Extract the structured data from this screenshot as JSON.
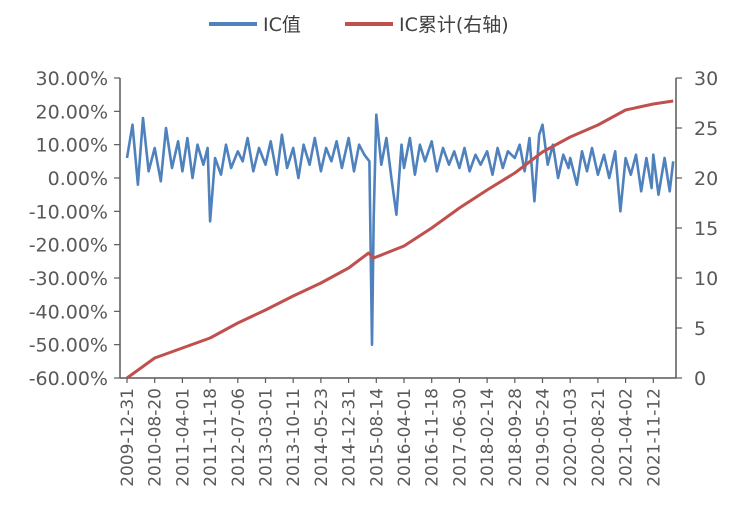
{
  "chart_data": {
    "type": "line",
    "legend": {
      "position": "top",
      "entries": [
        {
          "label": "IC值",
          "color": "#4f81bd"
        },
        {
          "label": "IC累计(右轴)",
          "color": "#c0504d"
        }
      ]
    },
    "left_axis": {
      "ticks": [
        "30.00%",
        "20.00%",
        "10.00%",
        "0.00%",
        "-10.00%",
        "-20.00%",
        "-30.00%",
        "-40.00%",
        "-50.00%",
        "-60.00%"
      ],
      "range": [
        -0.6,
        0.3
      ]
    },
    "right_axis": {
      "ticks": [
        "30",
        "25",
        "20",
        "15",
        "10",
        "5",
        "0"
      ],
      "range": [
        0,
        30
      ]
    },
    "x_ticks": [
      "2009-12-31",
      "2010-08-20",
      "2011-04-01",
      "2011-11-18",
      "2012-07-06",
      "2013-03-01",
      "2013-10-11",
      "2014-05-23",
      "2014-12-31",
      "2015-08-14",
      "2016-04-01",
      "2016-11-18",
      "2017-06-30",
      "2018-02-14",
      "2018-09-28",
      "2019-05-24",
      "2020-01-03",
      "2020-08-21",
      "2021-04-02",
      "2021-11-12"
    ],
    "grid": false,
    "series": [
      {
        "name": "IC值",
        "axis": "left",
        "color": "#4f81bd",
        "points_date_value": [
          [
            "2009-12-31",
            0.06
          ],
          [
            "2010-02-15",
            0.16
          ],
          [
            "2010-04-01",
            -0.02
          ],
          [
            "2010-05-14",
            0.18
          ],
          [
            "2010-06-30",
            0.02
          ],
          [
            "2010-08-20",
            0.09
          ],
          [
            "2010-10-08",
            -0.01
          ],
          [
            "2010-11-19",
            0.15
          ],
          [
            "2011-01-07",
            0.03
          ],
          [
            "2011-02-25",
            0.11
          ],
          [
            "2011-04-01",
            0.02
          ],
          [
            "2011-05-13",
            0.12
          ],
          [
            "2011-06-24",
            0.0
          ],
          [
            "2011-08-05",
            0.1
          ],
          [
            "2011-09-23",
            0.04
          ],
          [
            "2011-10-28",
            0.09
          ],
          [
            "2011-11-18",
            -0.13
          ],
          [
            "2011-12-30",
            0.06
          ],
          [
            "2012-02-17",
            0.01
          ],
          [
            "2012-03-30",
            0.1
          ],
          [
            "2012-05-11",
            0.03
          ],
          [
            "2012-07-06",
            0.08
          ],
          [
            "2012-08-17",
            0.05
          ],
          [
            "2012-09-28",
            0.12
          ],
          [
            "2012-11-16",
            0.02
          ],
          [
            "2013-01-04",
            0.09
          ],
          [
            "2013-03-01",
            0.04
          ],
          [
            "2013-04-12",
            0.11
          ],
          [
            "2013-05-31",
            0.01
          ],
          [
            "2013-07-12",
            0.13
          ],
          [
            "2013-08-23",
            0.03
          ],
          [
            "2013-10-11",
            0.09
          ],
          [
            "2013-11-22",
            0.0
          ],
          [
            "2014-01-03",
            0.1
          ],
          [
            "2014-02-21",
            0.04
          ],
          [
            "2014-04-04",
            0.12
          ],
          [
            "2014-05-23",
            0.02
          ],
          [
            "2014-07-04",
            0.09
          ],
          [
            "2014-08-15",
            0.05
          ],
          [
            "2014-09-26",
            0.11
          ],
          [
            "2014-11-07",
            0.03
          ],
          [
            "2014-12-31",
            0.12
          ],
          [
            "2015-02-13",
            0.02
          ],
          [
            "2015-03-27",
            0.1
          ],
          [
            "2015-05-08",
            0.07
          ],
          [
            "2015-06-19",
            0.05
          ],
          [
            "2015-07-10",
            -0.5
          ],
          [
            "2015-07-24",
            -0.12
          ],
          [
            "2015-08-14",
            0.19
          ],
          [
            "2015-09-25",
            0.04
          ],
          [
            "2015-11-06",
            0.12
          ],
          [
            "2015-12-18",
            0.0
          ],
          [
            "2016-01-29",
            -0.11
          ],
          [
            "2016-03-11",
            0.1
          ],
          [
            "2016-04-01",
            0.03
          ],
          [
            "2016-05-20",
            0.12
          ],
          [
            "2016-07-01",
            0.01
          ],
          [
            "2016-08-12",
            0.1
          ],
          [
            "2016-09-23",
            0.05
          ],
          [
            "2016-11-18",
            0.11
          ],
          [
            "2016-12-30",
            0.02
          ],
          [
            "2017-02-17",
            0.09
          ],
          [
            "2017-04-07",
            0.04
          ],
          [
            "2017-05-19",
            0.08
          ],
          [
            "2017-06-30",
            0.03
          ],
          [
            "2017-08-11",
            0.09
          ],
          [
            "2017-09-22",
            0.02
          ],
          [
            "2017-11-10",
            0.07
          ],
          [
            "2017-12-22",
            0.04
          ],
          [
            "2018-02-14",
            0.08
          ],
          [
            "2018-03-30",
            0.01
          ],
          [
            "2018-05-11",
            0.09
          ],
          [
            "2018-06-22",
            0.03
          ],
          [
            "2018-08-03",
            0.08
          ],
          [
            "2018-09-28",
            0.06
          ],
          [
            "2018-11-09",
            0.1
          ],
          [
            "2018-12-21",
            0.02
          ],
          [
            "2019-02-01",
            0.12
          ],
          [
            "2019-03-15",
            -0.07
          ],
          [
            "2019-04-26",
            0.13
          ],
          [
            "2019-05-24",
            0.16
          ],
          [
            "2019-07-05",
            0.04
          ],
          [
            "2019-08-16",
            0.1
          ],
          [
            "2019-09-27",
            0.0
          ],
          [
            "2019-11-08",
            0.07
          ],
          [
            "2019-12-20",
            0.03
          ],
          [
            "2020-01-03",
            0.06
          ],
          [
            "2020-02-28",
            -0.02
          ],
          [
            "2020-04-10",
            0.08
          ],
          [
            "2020-05-22",
            0.02
          ],
          [
            "2020-07-03",
            0.09
          ],
          [
            "2020-08-21",
            0.01
          ],
          [
            "2020-10-09",
            0.07
          ],
          [
            "2020-11-20",
            0.0
          ],
          [
            "2021-01-08",
            0.08
          ],
          [
            "2021-02-19",
            -0.1
          ],
          [
            "2021-04-02",
            0.06
          ],
          [
            "2021-05-14",
            0.01
          ],
          [
            "2021-06-25",
            0.07
          ],
          [
            "2021-08-06",
            -0.04
          ],
          [
            "2021-09-17",
            0.06
          ],
          [
            "2021-10-29",
            -0.03
          ],
          [
            "2021-11-12",
            0.07
          ],
          [
            "2021-12-24",
            -0.05
          ],
          [
            "2022-02-11",
            0.06
          ],
          [
            "2022-03-25",
            -0.04
          ],
          [
            "2022-04-22",
            0.05
          ]
        ]
      },
      {
        "name": "IC累计(右轴)",
        "axis": "right",
        "color": "#c0504d",
        "points_date_value": [
          [
            "2009-12-31",
            0.0
          ],
          [
            "2010-08-20",
            2.0
          ],
          [
            "2011-04-01",
            3.0
          ],
          [
            "2011-11-18",
            4.0
          ],
          [
            "2012-07-06",
            5.5
          ],
          [
            "2013-03-01",
            6.8
          ],
          [
            "2013-10-11",
            8.2
          ],
          [
            "2014-05-23",
            9.5
          ],
          [
            "2014-12-31",
            11.0
          ],
          [
            "2015-06-12",
            12.5
          ],
          [
            "2015-07-24",
            12.0
          ],
          [
            "2016-04-01",
            13.2
          ],
          [
            "2016-11-18",
            15.0
          ],
          [
            "2017-06-30",
            17.0
          ],
          [
            "2018-02-14",
            18.8
          ],
          [
            "2018-09-28",
            20.5
          ],
          [
            "2019-05-24",
            22.6
          ],
          [
            "2020-01-03",
            24.1
          ],
          [
            "2020-08-21",
            25.3
          ],
          [
            "2021-04-02",
            26.8
          ],
          [
            "2021-11-12",
            27.4
          ],
          [
            "2022-04-22",
            27.7
          ]
        ]
      }
    ]
  }
}
